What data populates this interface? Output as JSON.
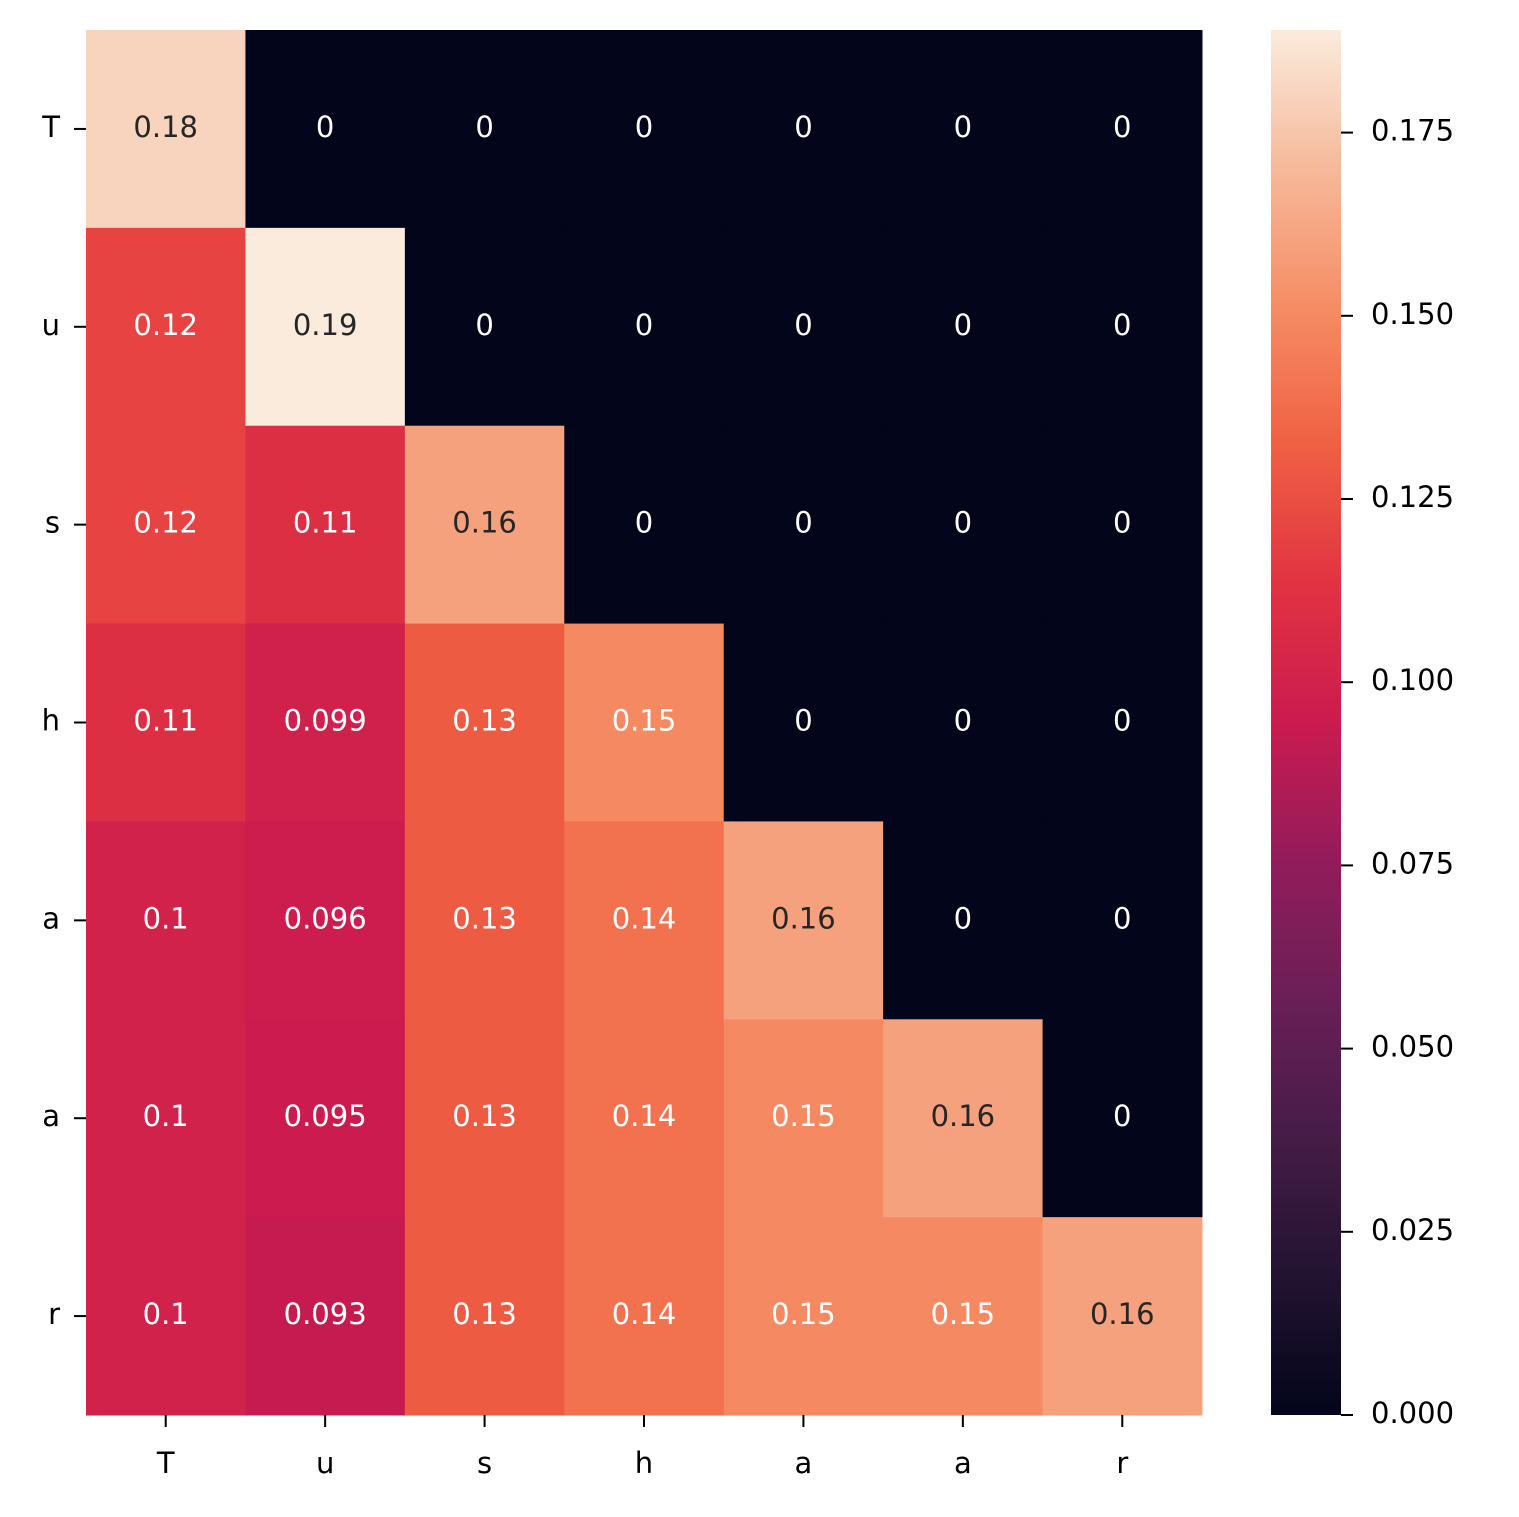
{
  "chart_data": {
    "type": "heatmap",
    "x": [
      "T",
      "u",
      "s",
      "h",
      "a",
      "a",
      "r"
    ],
    "y": [
      "T",
      "u",
      "s",
      "h",
      "a",
      "a",
      "r"
    ],
    "values": [
      [
        0.18,
        0,
        0,
        0,
        0,
        0,
        0
      ],
      [
        0.12,
        0.19,
        0,
        0,
        0,
        0,
        0
      ],
      [
        0.12,
        0.11,
        0.16,
        0,
        0,
        0,
        0
      ],
      [
        0.11,
        0.099,
        0.13,
        0.15,
        0,
        0,
        0
      ],
      [
        0.1,
        0.096,
        0.13,
        0.14,
        0.16,
        0,
        0
      ],
      [
        0.1,
        0.095,
        0.13,
        0.14,
        0.15,
        0.16,
        0
      ],
      [
        0.1,
        0.093,
        0.13,
        0.14,
        0.15,
        0.15,
        0.16
      ]
    ],
    "colorbar_lim": [
      0,
      0.189
    ],
    "colorbar_ticks": [
      {
        "value": 0,
        "label": "0.000"
      },
      {
        "value": 0.025,
        "label": "0.025"
      },
      {
        "value": 0.05,
        "label": "0.050"
      },
      {
        "value": 0.075,
        "label": "0.075"
      },
      {
        "value": 0.1,
        "label": "0.100"
      },
      {
        "value": 0.125,
        "label": "0.125"
      },
      {
        "value": 0.15,
        "label": "0.150"
      },
      {
        "value": 0.175,
        "label": "0.175"
      }
    ],
    "colormap": [
      "#03051a",
      "#221331",
      "#451c47",
      "#6a1f56",
      "#921c5b",
      "#cb1b4f",
      "#e13342",
      "#f06043",
      "#f58d64",
      "#f6b99a",
      "#faebdd"
    ]
  }
}
